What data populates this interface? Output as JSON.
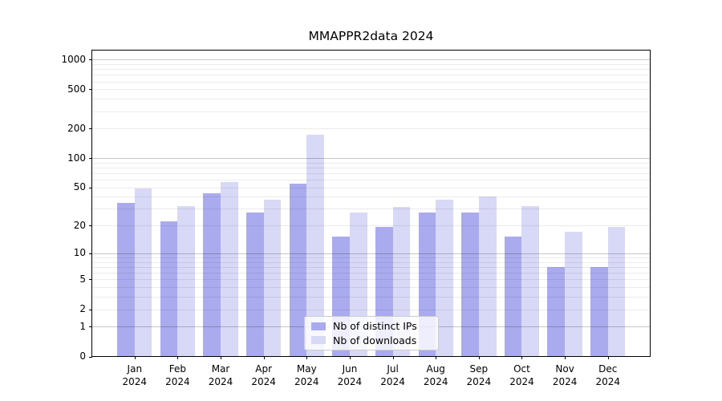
{
  "chart_data": {
    "type": "bar",
    "title": "MMAPPR2data 2024",
    "categories": [
      "Jan",
      "Feb",
      "Mar",
      "Apr",
      "May",
      "Jun",
      "Jul",
      "Aug",
      "Sep",
      "Oct",
      "Nov",
      "Dec"
    ],
    "x_year": "2024",
    "series": [
      {
        "name": "Nb of distinct IPs",
        "color": "#aaaaee",
        "values": [
          34,
          22,
          43,
          27,
          54,
          15,
          19,
          27,
          27,
          15,
          7,
          7
        ]
      },
      {
        "name": "Nb of downloads",
        "color": "#d8d8f7",
        "values": [
          48,
          32,
          56,
          37,
          172,
          27,
          31,
          37,
          40,
          32,
          17,
          19
        ]
      }
    ],
    "y_scale": "log10(1+x)",
    "y_ticks": [
      1000,
      500,
      200,
      100,
      50,
      20,
      10,
      5,
      2,
      1,
      0
    ],
    "ylim": [
      0,
      1240
    ],
    "grid": "horizontal",
    "legend_position": "lower-center-inside",
    "background": "#ffffff"
  },
  "colors": {
    "axis": "#000000",
    "major_grid": "rgba(0,0,0,0.22)",
    "minor_grid": "rgba(0,0,0,0.08)",
    "legend_border": "#cccccc",
    "legend_bg": "rgba(255,255,255,0.8)"
  }
}
